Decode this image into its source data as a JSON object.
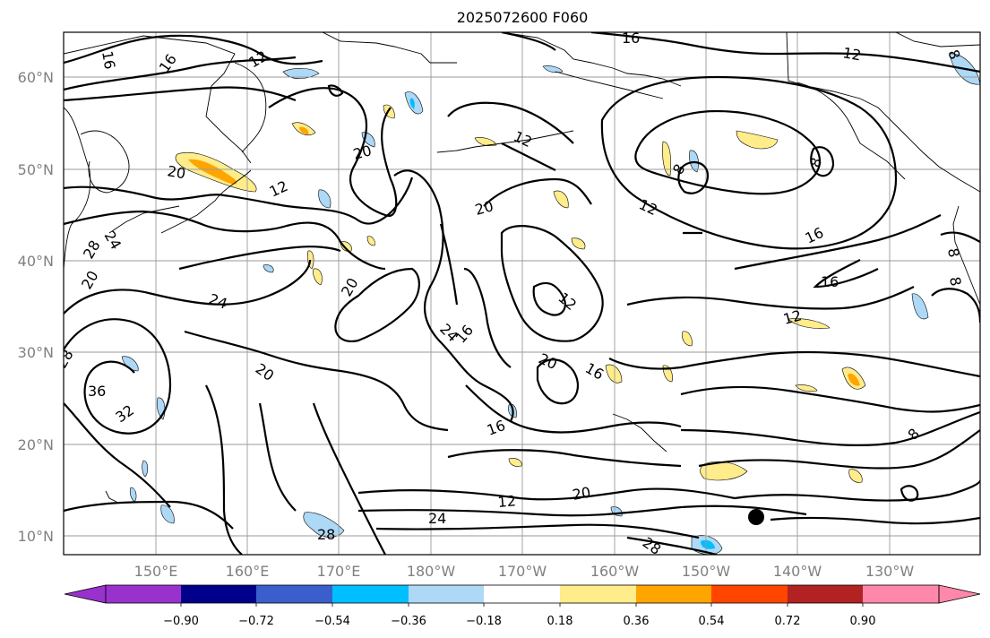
{
  "title": "2025072600 F060",
  "lon_ticks": [
    "150°E",
    "160°E",
    "170°E",
    "180°W",
    "170°W",
    "160°W",
    "150°W",
    "140°W",
    "130°W"
  ],
  "lat_ticks": [
    "10°N",
    "20°N",
    "30°N",
    "40°N",
    "50°N",
    "60°N"
  ],
  "colorbar": {
    "ticks": [
      "−0.90",
      "−0.72",
      "−0.54",
      "−0.36",
      "−0.18",
      "0.18",
      "0.36",
      "0.54",
      "0.72",
      "0.90"
    ],
    "colors": [
      "#9932cc",
      "#00008b",
      "#3a5fcd",
      "#00bfff",
      "#add8f6",
      "#ffffff",
      "#ffec8b",
      "#ffa500",
      "#ff4500",
      "#b22222",
      "#ff88aa"
    ]
  },
  "contour_labels": [
    "16",
    "16",
    "16",
    "12",
    "12",
    "12",
    "12",
    "12",
    "12",
    "12",
    "8",
    "8",
    "8",
    "8",
    "20",
    "20",
    "20",
    "20",
    "20",
    "20",
    "20",
    "20",
    "24",
    "24",
    "24",
    "24",
    "28",
    "28",
    "28",
    "28",
    "32",
    "36",
    "16",
    "16",
    "16",
    "16"
  ],
  "colors": {
    "contour": "#000000",
    "grid": "#999999",
    "frame": "#000000"
  }
}
